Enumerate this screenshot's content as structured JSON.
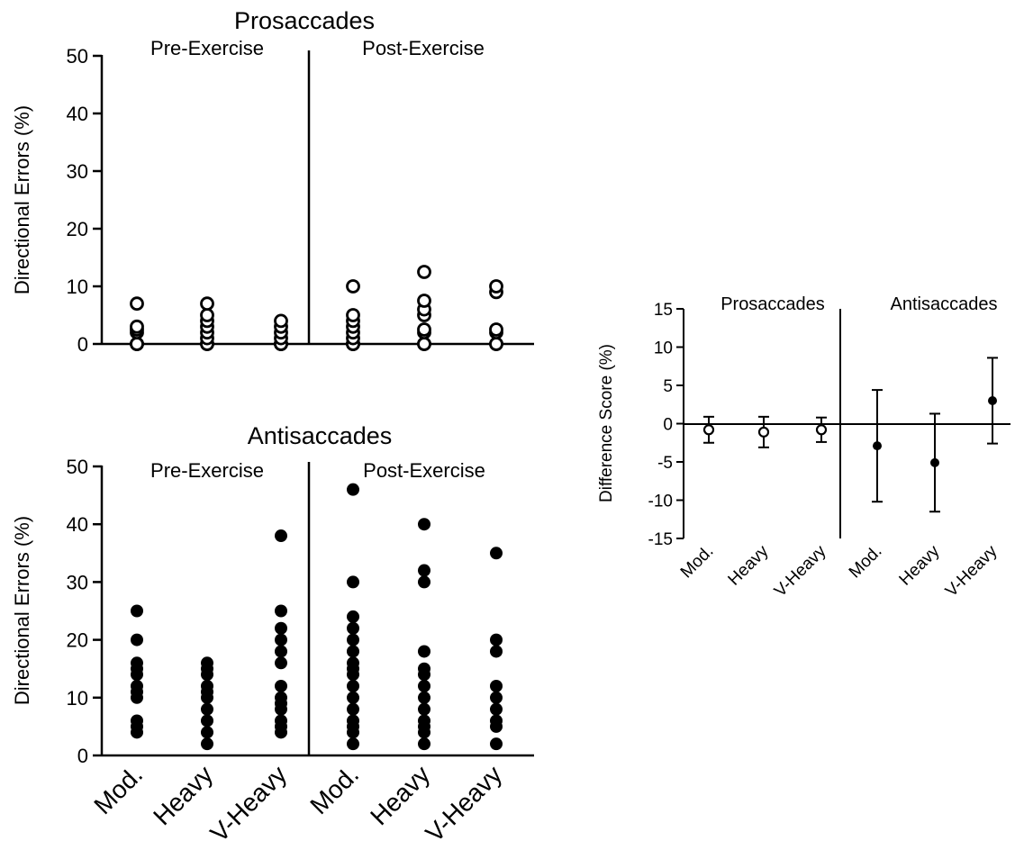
{
  "chart_data": [
    {
      "type": "scatter",
      "title": "Prosaccades",
      "ylabel": "Directional Errors (%)",
      "xlabel": "",
      "ylim": [
        0,
        50
      ],
      "yticks": [
        0,
        10,
        20,
        30,
        40,
        50
      ],
      "group_labels": [
        "Pre-Exercise",
        "Post-Exercise"
      ],
      "categories": [
        "Mod.",
        "Heavy",
        "V-Heavy",
        "Mod.",
        "Heavy",
        "V-Heavy"
      ],
      "marker": "open-circle",
      "grid": false,
      "values": [
        [
          0,
          0,
          0,
          2,
          2.5,
          3,
          7
        ],
        [
          0,
          0,
          1,
          2,
          3,
          4,
          5,
          7
        ],
        [
          0,
          0,
          0,
          1,
          2,
          3,
          4
        ],
        [
          0,
          0,
          0,
          1,
          2,
          3,
          4,
          5,
          10
        ],
        [
          0,
          0,
          2,
          2.5,
          5,
          6,
          7.5,
          12.5
        ],
        [
          0,
          0,
          2,
          2.5,
          9,
          10
        ]
      ]
    },
    {
      "type": "scatter",
      "title": "Antisaccades",
      "ylabel": "Directional Errors (%)",
      "xlabel": "",
      "ylim": [
        0,
        50
      ],
      "yticks": [
        0,
        10,
        20,
        30,
        40,
        50
      ],
      "group_labels": [
        "Pre-Exercise",
        "Post-Exercise"
      ],
      "categories": [
        "Mod.",
        "Heavy",
        "V-Heavy",
        "Mod.",
        "Heavy",
        "V-Heavy"
      ],
      "marker": "filled-circle",
      "grid": false,
      "values": [
        [
          4,
          5,
          6,
          10,
          11,
          12,
          14,
          15,
          16,
          20,
          25
        ],
        [
          2,
          4,
          6,
          8,
          10,
          11,
          12,
          14,
          15,
          16
        ],
        [
          4,
          5,
          6,
          8,
          9,
          10,
          12,
          16,
          18,
          20,
          22,
          25,
          38
        ],
        [
          2,
          4,
          5,
          6,
          8,
          10,
          12,
          14,
          15,
          16,
          18,
          20,
          22,
          24,
          30,
          46
        ],
        [
          2,
          4,
          5,
          6,
          8,
          10,
          12,
          14,
          15,
          18,
          30,
          32,
          40
        ],
        [
          2,
          5,
          6,
          8,
          10,
          12,
          18,
          20,
          35
        ]
      ]
    },
    {
      "type": "scatter",
      "title": "",
      "ylabel": "Difference Score (%)",
      "xlabel": "",
      "ylim": [
        -15,
        15
      ],
      "yticks": [
        -15,
        -10,
        -5,
        0,
        5,
        10,
        15
      ],
      "group_labels": [
        "Prosaccades",
        "Antisaccades"
      ],
      "categories": [
        "Mod.",
        "Heavy",
        "V-Heavy",
        "Mod.",
        "Heavy",
        "V-Heavy"
      ],
      "grid": false,
      "points": [
        {
          "mean": -0.8,
          "low": -2.5,
          "high": 0.9,
          "marker": "open-circle"
        },
        {
          "mean": -1.1,
          "low": -3.1,
          "high": 0.9,
          "marker": "open-circle"
        },
        {
          "mean": -0.8,
          "low": -2.4,
          "high": 0.8,
          "marker": "open-circle"
        },
        {
          "mean": -2.9,
          "low": -10.2,
          "high": 4.4,
          "marker": "filled-circle"
        },
        {
          "mean": -5.1,
          "low": -11.5,
          "high": 1.3,
          "marker": "filled-circle"
        },
        {
          "mean": 3.0,
          "low": -2.6,
          "high": 8.6,
          "marker": "filled-circle"
        }
      ]
    }
  ]
}
